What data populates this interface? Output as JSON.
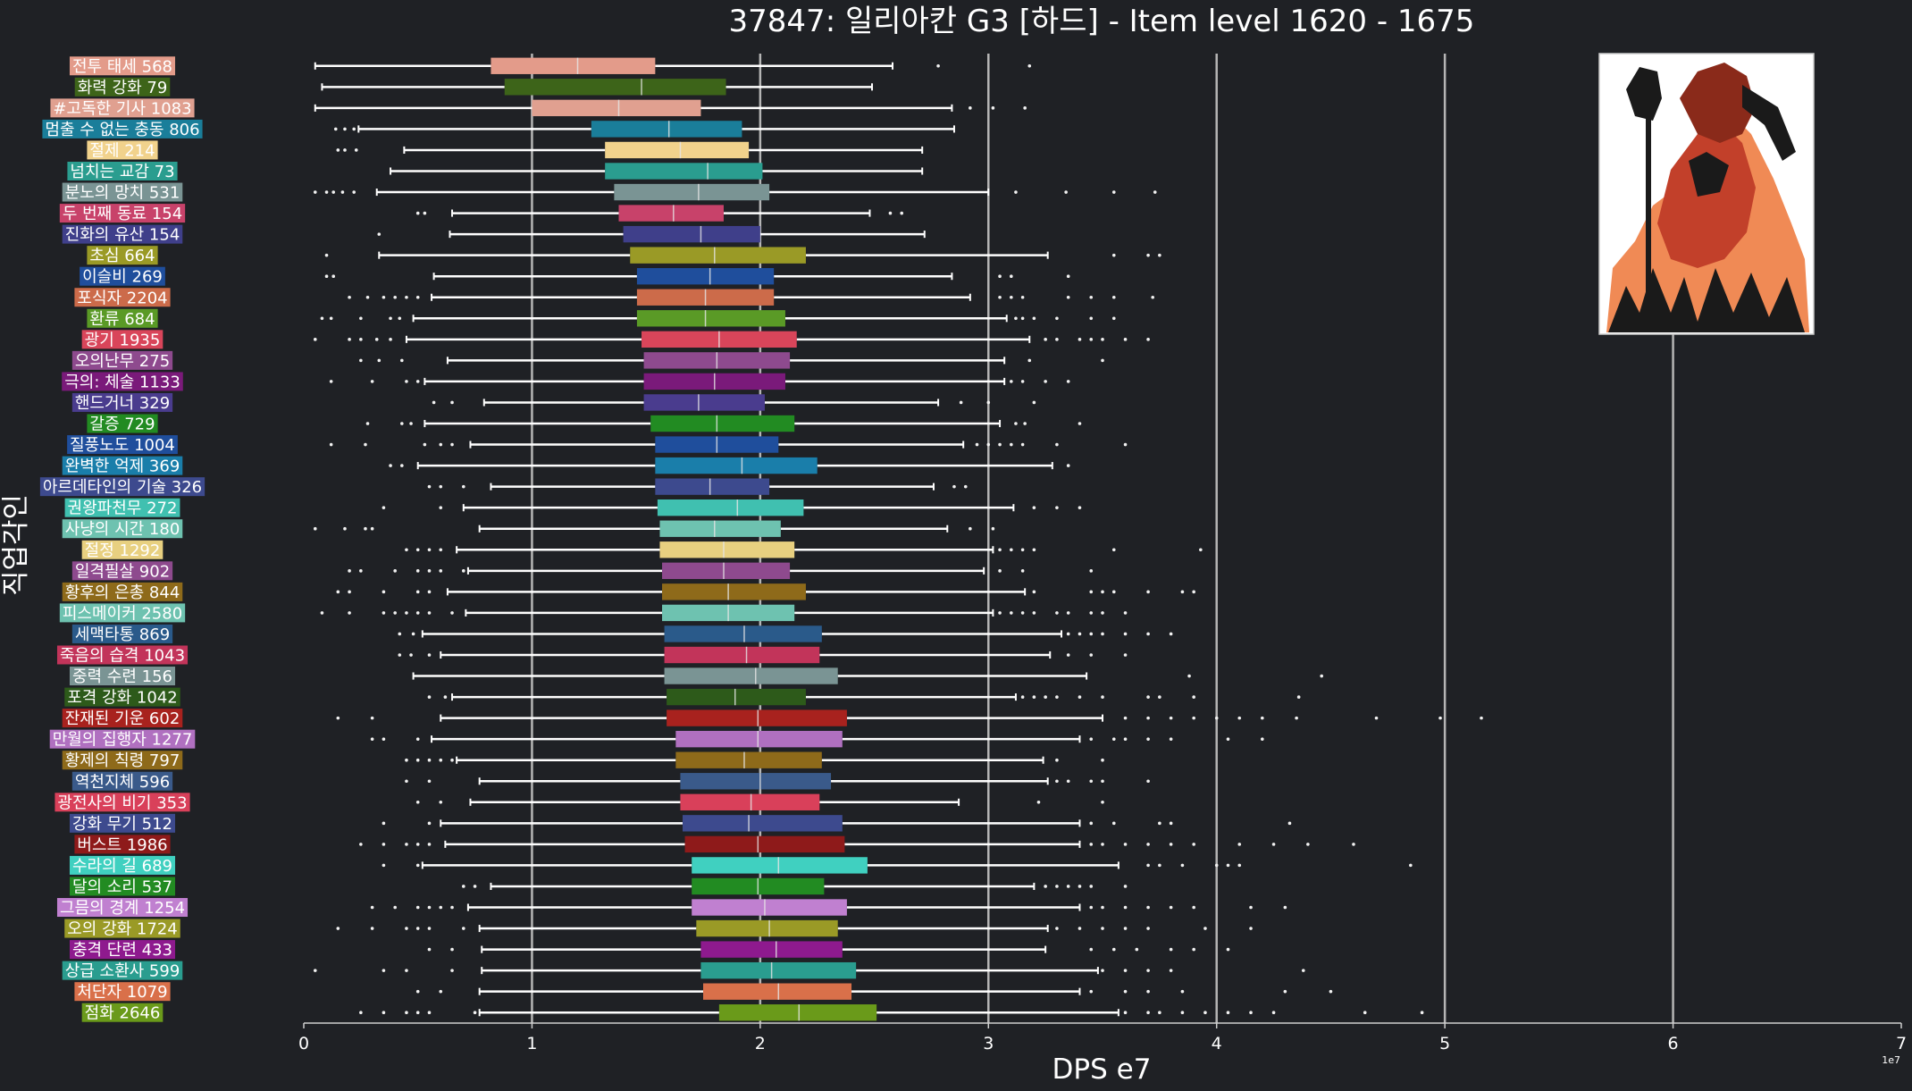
{
  "chart_data": {
    "type": "box",
    "title": "37847: 일리아칸 G3 [하드] - Item level 1620 - 1675",
    "xlabel": "DPS e7",
    "ylabel": "직업각인",
    "x_exponent_label": "1e7",
    "xlim": [
      0,
      7
    ],
    "x_ticks": [
      "0",
      "1",
      "2",
      "3",
      "4",
      "5",
      "6",
      "7"
    ],
    "grid": "vertical",
    "legend": "none",
    "categories": [
      {
        "label": "전투 태세 568",
        "color": "#e39b8a",
        "q1": 0.82,
        "median": 1.2,
        "q3": 1.54,
        "wlo": 0.05,
        "whi": 2.58,
        "outliers": [
          2.78,
          3.18
        ]
      },
      {
        "label": "화력 강화 79",
        "color": "#3d6419",
        "q1": 0.88,
        "median": 1.48,
        "q3": 1.85,
        "wlo": 0.08,
        "whi": 2.49,
        "outliers": []
      },
      {
        "label": "#고독한 기사 1083",
        "color": "#e0a090",
        "q1": 1.0,
        "median": 1.38,
        "q3": 1.74,
        "wlo": 0.05,
        "whi": 2.84,
        "outliers": [
          2.92,
          3.02,
          3.16
        ]
      },
      {
        "label": "멈출 수 없는 충동 806",
        "color": "#1a7e9a",
        "q1": 1.26,
        "median": 1.6,
        "q3": 1.92,
        "wlo": 0.24,
        "whi": 2.85,
        "outliers": [
          0.14,
          0.18,
          0.22
        ]
      },
      {
        "label": "절제 214",
        "color": "#f1d28c",
        "q1": 1.32,
        "median": 1.65,
        "q3": 1.95,
        "wlo": 0.44,
        "whi": 2.71,
        "outliers": [
          0.15,
          0.18,
          0.23
        ]
      },
      {
        "label": "넘치는 교감 73",
        "color": "#2a9d8f",
        "q1": 1.32,
        "median": 1.77,
        "q3": 2.01,
        "wlo": 0.38,
        "whi": 2.71,
        "outliers": []
      },
      {
        "label": "분노의 망치 531",
        "color": "#7a9494",
        "q1": 1.36,
        "median": 1.73,
        "q3": 2.04,
        "wlo": 0.32,
        "whi": 3.0,
        "outliers": [
          0.05,
          0.1,
          0.13,
          0.17,
          0.22,
          3.12,
          3.34,
          3.55,
          3.73
        ]
      },
      {
        "label": "두 번째 동료 154",
        "color": "#c8426a",
        "q1": 1.38,
        "median": 1.62,
        "q3": 1.84,
        "wlo": 0.65,
        "whi": 2.48,
        "outliers": [
          0.5,
          0.53,
          2.57,
          2.62
        ]
      },
      {
        "label": "진화의 유산 154",
        "color": "#3f3f8a",
        "q1": 1.4,
        "median": 1.74,
        "q3": 2.0,
        "wlo": 0.64,
        "whi": 2.72,
        "outliers": [
          0.33
        ]
      },
      {
        "label": "초심 664",
        "color": "#9a9a26",
        "q1": 1.43,
        "median": 1.8,
        "q3": 2.2,
        "wlo": 0.33,
        "whi": 3.26,
        "outliers": [
          0.1,
          3.55,
          3.7,
          3.75
        ]
      },
      {
        "label": "이슬비 269",
        "color": "#1f4e9c",
        "q1": 1.46,
        "median": 1.78,
        "q3": 2.06,
        "wlo": 0.57,
        "whi": 2.84,
        "outliers": [
          0.1,
          0.13,
          3.05,
          3.1,
          3.35
        ]
      },
      {
        "label": "포식자 2204",
        "color": "#cc6b4a",
        "q1": 1.46,
        "median": 1.76,
        "q3": 2.06,
        "wlo": 0.56,
        "whi": 2.92,
        "outliers": [
          0.2,
          0.28,
          0.35,
          0.4,
          0.45,
          0.5,
          3.05,
          3.1,
          3.15,
          3.35,
          3.45,
          3.55,
          3.72
        ]
      },
      {
        "label": "환류 684",
        "color": "#5a9a26",
        "q1": 1.46,
        "median": 1.76,
        "q3": 2.11,
        "wlo": 0.48,
        "whi": 3.08,
        "outliers": [
          0.08,
          0.12,
          0.25,
          0.38,
          0.42,
          3.12,
          3.15,
          3.2,
          3.3,
          3.45,
          3.55
        ]
      },
      {
        "label": "광기 1935",
        "color": "#d9455a",
        "q1": 1.48,
        "median": 1.82,
        "q3": 2.16,
        "wlo": 0.45,
        "whi": 3.18,
        "outliers": [
          0.05,
          0.2,
          0.25,
          0.32,
          0.38,
          3.25,
          3.3,
          3.4,
          3.45,
          3.5,
          3.6,
          3.7
        ]
      },
      {
        "label": "오의난무 275",
        "color": "#8e4a8e",
        "q1": 1.49,
        "median": 1.81,
        "q3": 2.13,
        "wlo": 0.63,
        "whi": 3.07,
        "outliers": [
          0.25,
          0.33,
          0.43,
          3.18,
          3.5
        ]
      },
      {
        "label": "극의: 체술 1133",
        "color": "#7a1a7a",
        "q1": 1.49,
        "median": 1.8,
        "q3": 2.11,
        "wlo": 0.53,
        "whi": 3.07,
        "outliers": [
          0.12,
          0.3,
          0.45,
          0.5,
          3.1,
          3.15,
          3.25,
          3.35
        ]
      },
      {
        "label": "핸드거너 329",
        "color": "#4a3c8e",
        "q1": 1.49,
        "median": 1.73,
        "q3": 2.02,
        "wlo": 0.79,
        "whi": 2.78,
        "outliers": [
          0.57,
          0.65,
          2.88,
          3.0,
          3.2
        ]
      },
      {
        "label": "갈증 729",
        "color": "#228b22",
        "q1": 1.52,
        "median": 1.81,
        "q3": 2.15,
        "wlo": 0.53,
        "whi": 3.05,
        "outliers": [
          0.28,
          0.43,
          0.47,
          3.12,
          3.16,
          3.4
        ]
      },
      {
        "label": "질풍노도 1004",
        "color": "#1f4e9c",
        "q1": 1.54,
        "median": 1.81,
        "q3": 2.08,
        "wlo": 0.73,
        "whi": 2.89,
        "outliers": [
          0.12,
          0.27,
          0.53,
          0.6,
          0.65,
          2.95,
          3.0,
          3.05,
          3.1,
          3.15,
          3.3,
          3.6
        ]
      },
      {
        "label": "완벽한 억제 369",
        "color": "#1a7eaa",
        "q1": 1.54,
        "median": 1.92,
        "q3": 2.25,
        "wlo": 0.5,
        "whi": 3.28,
        "outliers": [
          0.38,
          0.43,
          3.35
        ]
      },
      {
        "label": "아르데타인의 기술 326",
        "color": "#3d4a8e",
        "q1": 1.54,
        "median": 1.78,
        "q3": 2.04,
        "wlo": 0.82,
        "whi": 2.76,
        "outliers": [
          0.55,
          0.6,
          0.7,
          2.85,
          2.9
        ]
      },
      {
        "label": "권왕파천무 272",
        "color": "#40c0b0",
        "q1": 1.55,
        "median": 1.9,
        "q3": 2.19,
        "wlo": 0.7,
        "whi": 3.11,
        "outliers": [
          0.35,
          0.6,
          3.2,
          3.3,
          3.4
        ]
      },
      {
        "label": "사냥의 시간 180",
        "color": "#6ec2b0",
        "q1": 1.56,
        "median": 1.8,
        "q3": 2.09,
        "wlo": 0.77,
        "whi": 2.82,
        "outliers": [
          0.05,
          0.18,
          0.27,
          0.3,
          2.92,
          3.02
        ]
      },
      {
        "label": "절정 1292",
        "color": "#e8d080",
        "q1": 1.56,
        "median": 1.84,
        "q3": 2.15,
        "wlo": 0.67,
        "whi": 3.02,
        "outliers": [
          0.45,
          0.5,
          0.55,
          0.6,
          3.05,
          3.1,
          3.15,
          3.2,
          3.55,
          3.93
        ]
      },
      {
        "label": "일격필살 902",
        "color": "#8e4a8e",
        "q1": 1.57,
        "median": 1.84,
        "q3": 2.13,
        "wlo": 0.72,
        "whi": 2.98,
        "outliers": [
          0.2,
          0.25,
          0.4,
          0.5,
          0.55,
          0.6,
          0.7,
          3.05,
          3.15,
          3.45
        ]
      },
      {
        "label": "황후의 은총 844",
        "color": "#8e6a1a",
        "q1": 1.57,
        "median": 1.86,
        "q3": 2.2,
        "wlo": 0.63,
        "whi": 3.16,
        "outliers": [
          0.15,
          0.2,
          0.35,
          0.5,
          0.55,
          3.2,
          3.45,
          3.5,
          3.55,
          3.7,
          3.85,
          3.9
        ]
      },
      {
        "label": "피스메이커 2580",
        "color": "#6ec2b0",
        "q1": 1.57,
        "median": 1.86,
        "q3": 2.15,
        "wlo": 0.71,
        "whi": 3.02,
        "outliers": [
          0.08,
          0.2,
          0.35,
          0.4,
          0.45,
          0.5,
          0.55,
          0.65,
          3.05,
          3.1,
          3.15,
          3.2,
          3.3,
          3.35,
          3.45,
          3.5,
          3.6
        ]
      },
      {
        "label": "세맥타통 869",
        "color": "#2a5a8a",
        "q1": 1.58,
        "median": 1.93,
        "q3": 2.27,
        "wlo": 0.52,
        "whi": 3.32,
        "outliers": [
          0.42,
          0.48,
          3.35,
          3.4,
          3.45,
          3.5,
          3.6,
          3.7,
          3.8
        ]
      },
      {
        "label": "죽음의 습격 1043",
        "color": "#c2345a",
        "q1": 1.58,
        "median": 1.94,
        "q3": 2.26,
        "wlo": 0.6,
        "whi": 3.27,
        "outliers": [
          0.42,
          0.47,
          0.55,
          3.35,
          3.45,
          3.6
        ]
      },
      {
        "label": "중력 수련 156",
        "color": "#7a9494",
        "q1": 1.58,
        "median": 1.98,
        "q3": 2.34,
        "wlo": 0.48,
        "whi": 3.43,
        "outliers": [
          3.88,
          4.46
        ]
      },
      {
        "label": "포격 강화 1042",
        "color": "#2d5a1a",
        "q1": 1.59,
        "median": 1.89,
        "q3": 2.2,
        "wlo": 0.65,
        "whi": 3.12,
        "outliers": [
          0.55,
          0.62,
          3.15,
          3.2,
          3.25,
          3.3,
          3.4,
          3.5,
          3.7,
          3.75,
          3.9,
          4.36
        ]
      },
      {
        "label": "잔재된 기운 602",
        "color": "#a8221e",
        "q1": 1.59,
        "median": 1.99,
        "q3": 2.38,
        "wlo": 0.6,
        "whi": 3.5,
        "outliers": [
          0.15,
          0.3,
          3.6,
          3.7,
          3.8,
          3.9,
          4.0,
          4.1,
          4.2,
          4.35,
          4.7,
          4.98,
          5.16
        ]
      },
      {
        "label": "만월의 집행자 1277",
        "color": "#b070c0",
        "q1": 1.63,
        "median": 1.99,
        "q3": 2.36,
        "wlo": 0.56,
        "whi": 3.4,
        "outliers": [
          0.3,
          0.35,
          0.5,
          3.45,
          3.55,
          3.6,
          3.7,
          3.8,
          4.05,
          4.2
        ]
      },
      {
        "label": "황제의 칙령 797",
        "color": "#8e6a1a",
        "q1": 1.63,
        "median": 1.93,
        "q3": 2.27,
        "wlo": 0.67,
        "whi": 3.24,
        "outliers": [
          0.45,
          0.5,
          0.55,
          0.6,
          0.65,
          3.3,
          3.5
        ]
      },
      {
        "label": "역천지체 596",
        "color": "#3a5a8a",
        "q1": 1.65,
        "median": 2.0,
        "q3": 2.31,
        "wlo": 0.77,
        "whi": 3.26,
        "outliers": [
          0.45,
          0.55,
          3.3,
          3.35,
          3.45,
          3.5,
          3.7
        ]
      },
      {
        "label": "광전사의 비기 353",
        "color": "#d9405a",
        "q1": 1.65,
        "median": 1.96,
        "q3": 2.26,
        "wlo": 0.73,
        "whi": 2.87,
        "outliers": [
          0.5,
          0.6,
          3.22,
          3.5
        ]
      },
      {
        "label": "강화 무기 512",
        "color": "#3d4a8e",
        "q1": 1.66,
        "median": 1.95,
        "q3": 2.36,
        "wlo": 0.6,
        "whi": 3.4,
        "outliers": [
          0.35,
          0.55,
          3.45,
          3.55,
          3.75,
          3.8,
          4.32
        ]
      },
      {
        "label": "버스트 1986",
        "color": "#8e1a1a",
        "q1": 1.67,
        "median": 1.99,
        "q3": 2.37,
        "wlo": 0.62,
        "whi": 3.4,
        "outliers": [
          0.25,
          0.35,
          0.45,
          0.5,
          0.55,
          3.45,
          3.5,
          3.6,
          3.7,
          3.8,
          3.9,
          4.1,
          4.25,
          4.4,
          4.6
        ]
      },
      {
        "label": "수라의 길 689",
        "color": "#40d0c0",
        "q1": 1.7,
        "median": 2.08,
        "q3": 2.47,
        "wlo": 0.52,
        "whi": 3.57,
        "outliers": [
          0.35,
          0.5,
          3.7,
          3.75,
          3.85,
          4.0,
          4.05,
          4.1,
          4.85
        ]
      },
      {
        "label": "달의 소리 537",
        "color": "#228b22",
        "q1": 1.7,
        "median": 1.99,
        "q3": 2.28,
        "wlo": 0.82,
        "whi": 3.2,
        "outliers": [
          0.7,
          0.75,
          3.25,
          3.3,
          3.35,
          3.4,
          3.45,
          3.6
        ]
      },
      {
        "label": "그믐의 경계 1254",
        "color": "#c080d0",
        "q1": 1.7,
        "median": 2.02,
        "q3": 2.38,
        "wlo": 0.72,
        "whi": 3.4,
        "outliers": [
          0.3,
          0.4,
          0.5,
          0.55,
          0.6,
          0.65,
          3.45,
          3.5,
          3.6,
          3.7,
          3.8,
          3.9,
          4.15,
          4.3
        ]
      },
      {
        "label": "오의 강화 1724",
        "color": "#9a9a26",
        "q1": 1.72,
        "median": 2.04,
        "q3": 2.34,
        "wlo": 0.77,
        "whi": 3.26,
        "outliers": [
          0.15,
          0.3,
          0.45,
          0.5,
          0.55,
          0.7,
          3.3,
          3.4,
          3.5,
          3.6,
          3.7,
          3.95,
          4.15
        ]
      },
      {
        "label": "충격 단련 433",
        "color": "#8e1a8e",
        "q1": 1.74,
        "median": 2.07,
        "q3": 2.36,
        "wlo": 0.78,
        "whi": 3.25,
        "outliers": [
          0.55,
          0.65,
          3.45,
          3.55,
          3.65,
          3.8,
          3.9,
          4.05
        ]
      },
      {
        "label": "상급 소환사 599",
        "color": "#2a9d8f",
        "q1": 1.74,
        "median": 2.05,
        "q3": 2.42,
        "wlo": 0.78,
        "whi": 3.48,
        "outliers": [
          0.05,
          0.35,
          0.45,
          0.65,
          3.5,
          3.6,
          3.7,
          3.8,
          4.38
        ]
      },
      {
        "label": "처단자 1079",
        "color": "#d9704a",
        "q1": 1.75,
        "median": 2.08,
        "q3": 2.4,
        "wlo": 0.77,
        "whi": 3.4,
        "outliers": [
          0.5,
          0.6,
          3.45,
          3.6,
          3.7,
          3.85,
          4.3,
          4.5
        ]
      },
      {
        "label": "점화 2646",
        "color": "#6a9a1a",
        "q1": 1.82,
        "median": 2.17,
        "q3": 2.51,
        "wlo": 0.77,
        "whi": 3.57,
        "outliers": [
          0.25,
          0.35,
          0.45,
          0.5,
          0.55,
          0.75,
          3.6,
          3.7,
          3.75,
          3.85,
          3.95,
          4.05,
          4.15,
          4.25,
          4.65,
          4.9
        ]
      }
    ]
  }
}
